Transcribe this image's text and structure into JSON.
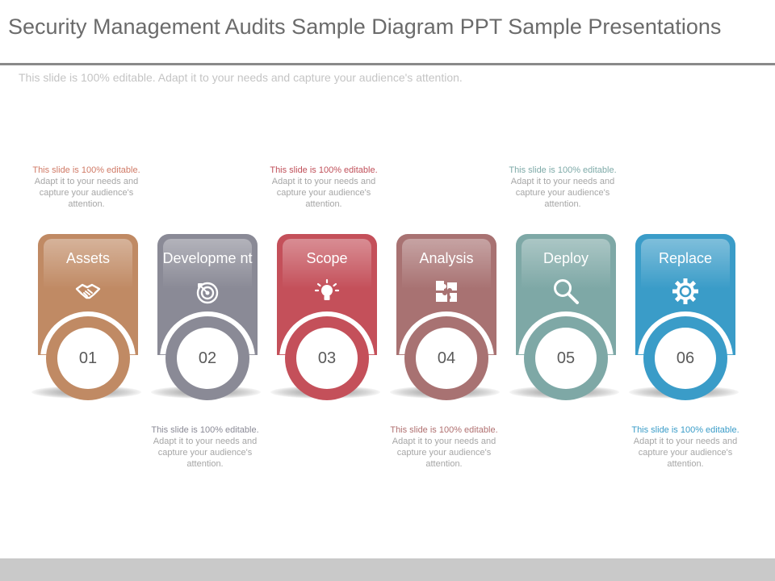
{
  "title": "Security Management Audits Sample Diagram PPT Sample Presentations",
  "subtitle": "This slide is 100% editable. Adapt it to your needs and capture your audience's attention.",
  "notes": [
    {
      "head": "This slide is 100% editable.",
      "body": "Adapt it to your needs and capture your audience's attention.",
      "color": "#d07a66"
    },
    {
      "head": "This slide is 100% editable.",
      "body": "Adapt it to your needs and capture your audience's attention.",
      "color": "#8a8a96"
    },
    {
      "head": "This slide is 100% editable.",
      "body": "Adapt it to your needs and capture your audience's attention.",
      "color": "#c0505a"
    },
    {
      "head": "This slide is 100% editable.",
      "body": "Adapt it to your needs and capture your audience's attention.",
      "color": "#b07070"
    },
    {
      "head": "This slide is 100% editable.",
      "body": "Adapt it to your needs and capture your audience's attention.",
      "color": "#7eaaa8"
    },
    {
      "head": "This slide is 100% editable.",
      "body": "Adapt it to your needs and capture your audience's attention.",
      "color": "#3a9cc8"
    }
  ],
  "steps": [
    {
      "label": "Assets",
      "number": "01",
      "icon": "handshake-icon",
      "color": "#c08a64"
    },
    {
      "label": "Developme nt",
      "number": "02",
      "icon": "target-icon",
      "color": "#8a8a96"
    },
    {
      "label": "Scope",
      "number": "03",
      "icon": "lightbulb-icon",
      "color": "#c4505a"
    },
    {
      "label": "Analysis",
      "number": "04",
      "icon": "puzzle-icon",
      "color": "#a87272"
    },
    {
      "label": "Deploy",
      "number": "05",
      "icon": "magnifier-icon",
      "color": "#7ea8a6"
    },
    {
      "label": "Replace",
      "number": "06",
      "icon": "gear-icon",
      "color": "#3a9cc8"
    }
  ]
}
